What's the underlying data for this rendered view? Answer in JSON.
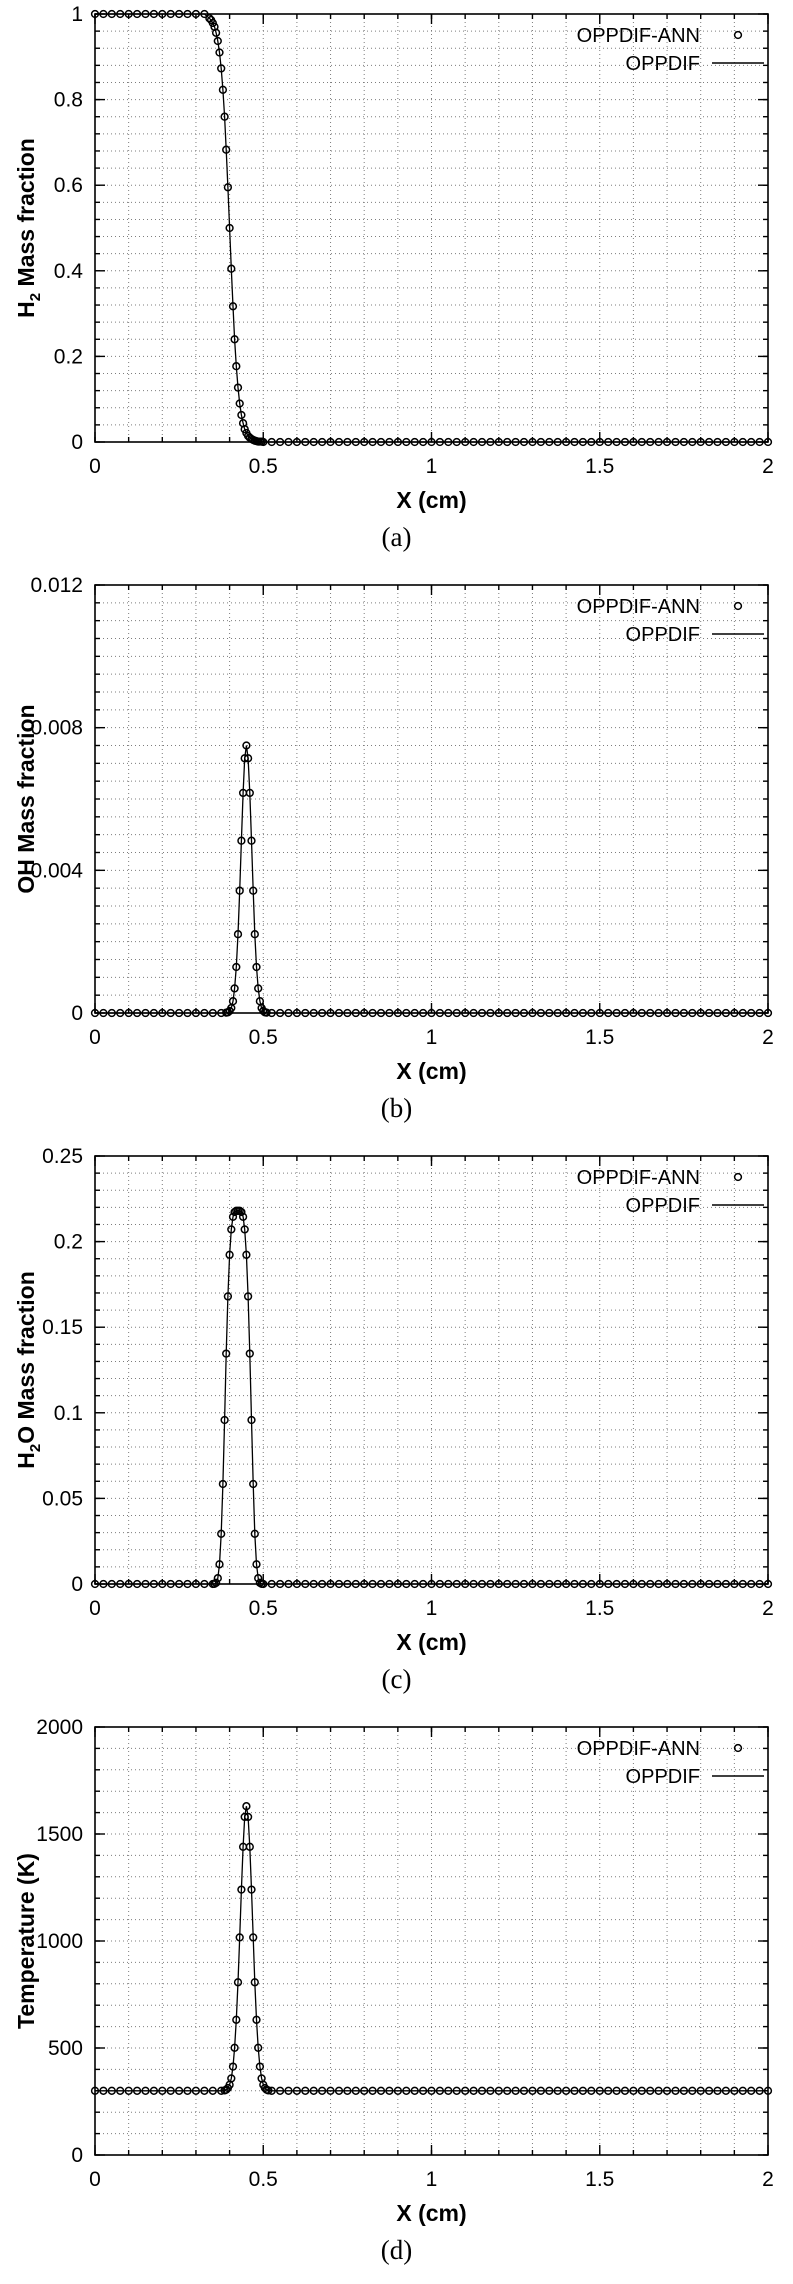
{
  "figure": {
    "colors": {
      "ink": "#000000",
      "grid": "#7d7d7d",
      "background": "#ffffff"
    }
  },
  "chart_data": [
    {
      "type": "line",
      "caption": "(a)",
      "xlabel": "X (cm)",
      "ylabel_parts": [
        {
          "text": "H",
          "sub": false
        },
        {
          "text": "2",
          "sub": true
        },
        {
          "text": " Mass fraction",
          "sub": false
        }
      ],
      "xlim": [
        0,
        2
      ],
      "ylim": [
        0,
        1
      ],
      "xticks": [
        0,
        0.5,
        1,
        1.5,
        2
      ],
      "xtick_labels": [
        "0",
        "0.5",
        "1",
        "1.5",
        "2"
      ],
      "yticks": [
        0,
        0.2,
        0.4,
        0.6,
        0.8,
        1
      ],
      "ytick_labels": [
        "0",
        "0.2",
        "0.4",
        "0.6",
        "0.8",
        "1"
      ],
      "x_minor_step": 0.1,
      "y_minor_step": 0.04,
      "grid": true,
      "legend_position": "top-right",
      "series": [
        {
          "name": "OPPDIF-ANN",
          "style": "markers"
        },
        {
          "name": "OPPDIF",
          "style": "line"
        }
      ],
      "profile": [
        {
          "span": {
            "from": 0,
            "to": 0.325,
            "step": 0.025,
            "y": 1
          }
        },
        {
          "points": [
            [
              0.34,
              0.99
            ],
            [
              0.345,
              0.986
            ],
            [
              0.35,
              0.979
            ],
            [
              0.355,
              0.97
            ],
            [
              0.36,
              0.956
            ],
            [
              0.365,
              0.937
            ],
            [
              0.37,
              0.91
            ],
            [
              0.375,
              0.873
            ],
            [
              0.38,
              0.823
            ],
            [
              0.385,
              0.76
            ],
            [
              0.39,
              0.683
            ],
            [
              0.395,
              0.595
            ],
            [
              0.4,
              0.5
            ],
            [
              0.405,
              0.405
            ],
            [
              0.41,
              0.317
            ],
            [
              0.415,
              0.24
            ],
            [
              0.42,
              0.177
            ],
            [
              0.425,
              0.127
            ],
            [
              0.43,
              0.09
            ],
            [
              0.435,
              0.063
            ],
            [
              0.44,
              0.044
            ],
            [
              0.445,
              0.03
            ],
            [
              0.45,
              0.021
            ],
            [
              0.455,
              0.014
            ],
            [
              0.46,
              0.01
            ],
            [
              0.465,
              0.007
            ],
            [
              0.47,
              0.005
            ],
            [
              0.475,
              0.003
            ],
            [
              0.48,
              0.002
            ],
            [
              0.485,
              0.001
            ],
            [
              0.49,
              0.001
            ],
            [
              0.495,
              0.001
            ],
            [
              0.5,
              0
            ]
          ]
        },
        {
          "span": {
            "from": 0.525,
            "to": 2.0,
            "step": 0.025,
            "y": 0
          }
        }
      ]
    },
    {
      "type": "line",
      "caption": "(b)",
      "xlabel": "X (cm)",
      "ylabel_parts": [
        {
          "text": "OH Mass fraction",
          "sub": false
        }
      ],
      "xlim": [
        0,
        2
      ],
      "ylim": [
        0,
        0.012
      ],
      "xticks": [
        0,
        0.5,
        1,
        1.5,
        2
      ],
      "xtick_labels": [
        "0",
        "0.5",
        "1",
        "1.5",
        "2"
      ],
      "yticks": [
        0,
        0.004,
        0.008,
        0.012
      ],
      "ytick_labels": [
        "0",
        "0.004",
        "0.008",
        "0.012"
      ],
      "x_minor_step": 0.1,
      "y_minor_step": 0.0005,
      "grid": true,
      "legend_position": "top-right",
      "series": [
        {
          "name": "OPPDIF-ANN",
          "style": "markers"
        },
        {
          "name": "OPPDIF",
          "style": "line"
        }
      ],
      "profile": [
        {
          "span": {
            "from": 0,
            "to": 0.375,
            "step": 0.025,
            "y": 0
          }
        },
        {
          "points": [
            [
              0.39,
              1e-05
            ],
            [
              0.395,
              2e-05
            ],
            [
              0.4,
              6e-05
            ],
            [
              0.405,
              0.00014
            ],
            [
              0.41,
              0.00033
            ],
            [
              0.415,
              0.00069
            ],
            [
              0.42,
              0.00129
            ],
            [
              0.425,
              0.00221
            ],
            [
              0.43,
              0.00343
            ],
            [
              0.435,
              0.00483
            ],
            [
              0.44,
              0.00617
            ],
            [
              0.445,
              0.00714
            ],
            [
              0.45,
              0.0075
            ],
            [
              0.455,
              0.00714
            ],
            [
              0.46,
              0.00617
            ],
            [
              0.465,
              0.00483
            ],
            [
              0.47,
              0.00343
            ],
            [
              0.475,
              0.00221
            ],
            [
              0.48,
              0.00129
            ],
            [
              0.485,
              0.00069
            ],
            [
              0.49,
              0.00033
            ],
            [
              0.495,
              0.00014
            ],
            [
              0.5,
              6e-05
            ],
            [
              0.505,
              2e-05
            ],
            [
              0.51,
              1e-05
            ]
          ]
        },
        {
          "span": {
            "from": 0.525,
            "to": 2.0,
            "step": 0.025,
            "y": 0
          }
        }
      ]
    },
    {
      "type": "line",
      "caption": "(c)",
      "xlabel": "X (cm)",
      "ylabel_parts": [
        {
          "text": "H",
          "sub": false
        },
        {
          "text": "2",
          "sub": true
        },
        {
          "text": "O Mass fraction",
          "sub": false
        }
      ],
      "xlim": [
        0,
        2
      ],
      "ylim": [
        0,
        0.25
      ],
      "xticks": [
        0,
        0.5,
        1,
        1.5,
        2
      ],
      "xtick_labels": [
        "0",
        "0.5",
        "1",
        "1.5",
        "2"
      ],
      "yticks": [
        0,
        0.05,
        0.1,
        0.15,
        0.2,
        0.25
      ],
      "ytick_labels": [
        "0",
        "0.05",
        "0.1",
        "0.15",
        "0.2",
        "0.25"
      ],
      "x_minor_step": 0.1,
      "y_minor_step": 0.01,
      "grid": true,
      "legend_position": "top-right",
      "series": [
        {
          "name": "OPPDIF-ANN",
          "style": "markers"
        },
        {
          "name": "OPPDIF",
          "style": "line"
        }
      ],
      "profile": [
        {
          "span": {
            "from": 0,
            "to": 0.35,
            "step": 0.025,
            "y": 0
          }
        },
        {
          "points": [
            [
              0.355,
              0.0001
            ],
            [
              0.36,
              0.0007
            ],
            [
              0.365,
              0.0034
            ],
            [
              0.37,
              0.0115
            ],
            [
              0.375,
              0.0293
            ],
            [
              0.38,
              0.0584
            ],
            [
              0.385,
              0.0958
            ],
            [
              0.39,
              0.1346
            ],
            [
              0.395,
              0.168
            ],
            [
              0.4,
              0.1923
            ],
            [
              0.405,
              0.2071
            ],
            [
              0.41,
              0.2145
            ],
            [
              0.415,
              0.2173
            ],
            [
              0.42,
              0.218
            ],
            [
              0.425,
              0.218
            ],
            [
              0.43,
              0.218
            ],
            [
              0.435,
              0.2173
            ],
            [
              0.44,
              0.2145
            ],
            [
              0.445,
              0.2071
            ],
            [
              0.45,
              0.1923
            ],
            [
              0.455,
              0.168
            ],
            [
              0.46,
              0.1346
            ],
            [
              0.465,
              0.0958
            ],
            [
              0.47,
              0.0584
            ],
            [
              0.475,
              0.0293
            ],
            [
              0.48,
              0.0115
            ],
            [
              0.485,
              0.0034
            ],
            [
              0.49,
              0.0007
            ],
            [
              0.495,
              0.0001
            ]
          ]
        },
        {
          "span": {
            "from": 0.5,
            "to": 2.0,
            "step": 0.025,
            "y": 0
          }
        }
      ]
    },
    {
      "type": "line",
      "caption": "(d)",
      "xlabel": "X (cm)",
      "ylabel_parts": [
        {
          "text": "Temperature (K)",
          "sub": false
        }
      ],
      "xlim": [
        0,
        2
      ],
      "ylim": [
        0,
        2000
      ],
      "xticks": [
        0,
        0.5,
        1,
        1.5,
        2
      ],
      "xtick_labels": [
        "0",
        "0.5",
        "1",
        "1.5",
        "2"
      ],
      "yticks": [
        0,
        500,
        1000,
        1500,
        2000
      ],
      "ytick_labels": [
        "0",
        "500",
        "1000",
        "1500",
        "2000"
      ],
      "x_minor_step": 0.1,
      "y_minor_step": 100,
      "grid": true,
      "legend_position": "top-right",
      "series": [
        {
          "name": "OPPDIF-ANN",
          "style": "markers"
        },
        {
          "name": "OPPDIF",
          "style": "line"
        }
      ],
      "profile": [
        {
          "span": {
            "from": 0,
            "to": 0.375,
            "step": 0.025,
            "y": 300
          }
        },
        {
          "points": [
            [
              0.385,
              302
            ],
            [
              0.39,
              305
            ],
            [
              0.395,
              313
            ],
            [
              0.4,
              328
            ],
            [
              0.405,
              358
            ],
            [
              0.41,
              413
            ],
            [
              0.415,
              501
            ],
            [
              0.42,
              632
            ],
            [
              0.425,
              807
            ],
            [
              0.43,
              1017
            ],
            [
              0.435,
              1240
            ],
            [
              0.44,
              1440
            ],
            [
              0.445,
              1580
            ],
            [
              0.45,
              1630
            ],
            [
              0.455,
              1580
            ],
            [
              0.46,
              1440
            ],
            [
              0.465,
              1240
            ],
            [
              0.47,
              1017
            ],
            [
              0.475,
              807
            ],
            [
              0.48,
              632
            ],
            [
              0.485,
              501
            ],
            [
              0.49,
              413
            ],
            [
              0.495,
              358
            ],
            [
              0.5,
              328
            ],
            [
              0.505,
              313
            ],
            [
              0.51,
              305
            ],
            [
              0.515,
              302
            ]
          ]
        },
        {
          "span": {
            "from": 0.525,
            "to": 2.0,
            "step": 0.025,
            "y": 300
          }
        }
      ]
    }
  ]
}
